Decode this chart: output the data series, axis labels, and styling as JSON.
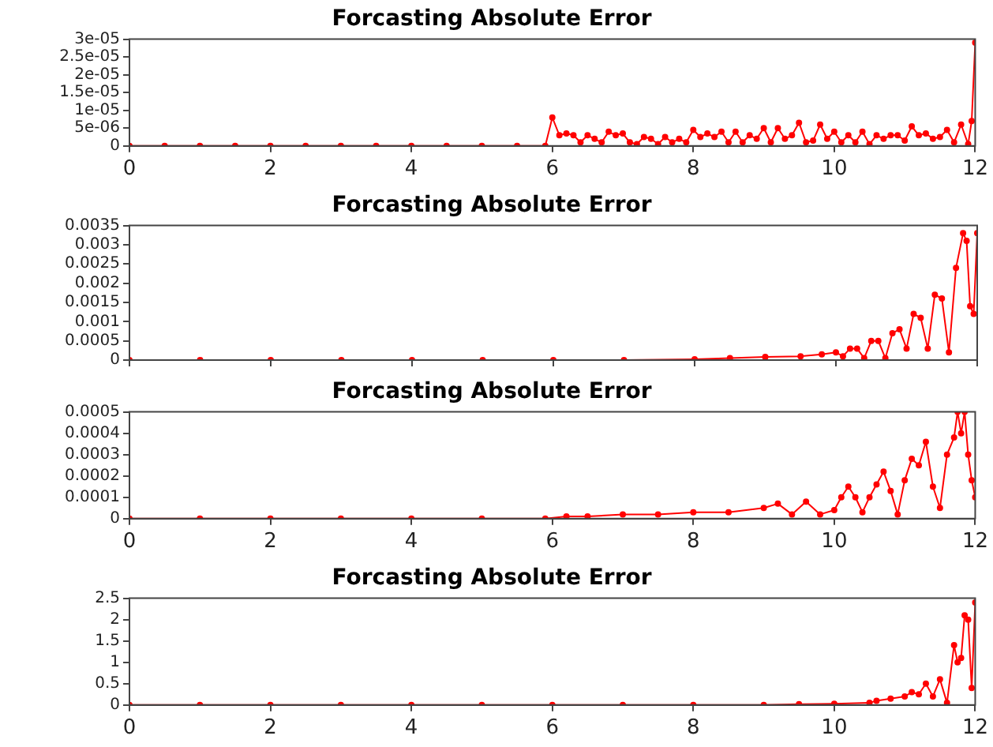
{
  "chart_data": [
    {
      "type": "line",
      "title": "Forcasting Absolute Error",
      "marker": "circle",
      "grid": false,
      "xlim": [
        0,
        12
      ],
      "xticks": [
        0,
        2,
        4,
        6,
        8,
        10,
        12
      ],
      "ylim": [
        0,
        3e-05
      ],
      "yticks": [
        0,
        {
          "value": 5e-06,
          "label": "5e-06"
        },
        {
          "value": 1e-05,
          "label": "1e-05"
        },
        {
          "value": 1.5e-05,
          "label": "1.5e-05"
        },
        {
          "value": 2e-05,
          "label": "2e-05"
        },
        {
          "value": 2.5e-05,
          "label": "2.5e-05"
        },
        {
          "value": 3e-05,
          "label": "3e-05"
        }
      ],
      "series": [
        {
          "color": "#ff0000",
          "x": [
            0,
            0.5,
            1,
            1.5,
            2,
            2.5,
            3,
            3.5,
            4,
            4.5,
            5,
            5.5,
            5.9,
            6.0,
            6.1,
            6.2,
            6.3,
            6.4,
            6.5,
            6.6,
            6.7,
            6.8,
            6.9,
            7.0,
            7.1,
            7.2,
            7.3,
            7.4,
            7.5,
            7.6,
            7.7,
            7.8,
            7.9,
            8.0,
            8.1,
            8.2,
            8.3,
            8.4,
            8.5,
            8.6,
            8.7,
            8.8,
            8.9,
            9.0,
            9.1,
            9.2,
            9.3,
            9.4,
            9.5,
            9.6,
            9.7,
            9.8,
            9.9,
            10.0,
            10.1,
            10.2,
            10.3,
            10.4,
            10.5,
            10.6,
            10.7,
            10.8,
            10.9,
            11.0,
            11.1,
            11.2,
            11.3,
            11.4,
            11.5,
            11.6,
            11.7,
            11.8,
            11.9,
            11.95,
            12.0
          ],
          "values": [
            0,
            0,
            0,
            0,
            0,
            0,
            0,
            0,
            0,
            0,
            0,
            0,
            0,
            8e-06,
            3e-06,
            3.5e-06,
            3e-06,
            1e-06,
            3e-06,
            2e-06,
            1e-06,
            4e-06,
            3e-06,
            3.5e-06,
            1e-06,
            5e-07,
            2.5e-06,
            2e-06,
            5e-07,
            2.5e-06,
            1e-06,
            2e-06,
            1e-06,
            4.5e-06,
            2.5e-06,
            3.5e-06,
            2.5e-06,
            4e-06,
            1e-06,
            4e-06,
            1e-06,
            3e-06,
            2e-06,
            5e-06,
            1e-06,
            5e-06,
            2e-06,
            3e-06,
            6.5e-06,
            1e-06,
            1.5e-06,
            6e-06,
            2e-06,
            4e-06,
            1e-06,
            3e-06,
            1e-06,
            4e-06,
            5e-07,
            3e-06,
            2e-06,
            3e-06,
            3e-06,
            1.5e-06,
            5.5e-06,
            3e-06,
            3.5e-06,
            2e-06,
            2.5e-06,
            4.5e-06,
            1e-06,
            6e-06,
            5e-07,
            7e-06,
            2.9e-05
          ]
        }
      ]
    },
    {
      "type": "line",
      "title": "Forcasting Absolute Error",
      "marker": "circle",
      "grid": false,
      "tick_labels": "y",
      "xlim": [
        0,
        12
      ],
      "xticks": [
        0,
        2,
        4,
        6,
        8,
        10,
        12
      ],
      "ylim": [
        0,
        0.0035
      ],
      "yticks": [
        0,
        0.0005,
        0.001,
        0.0015,
        0.002,
        0.0025,
        0.003,
        0.0035
      ],
      "series": [
        {
          "color": "#ff0000",
          "x": [
            0,
            1,
            2,
            3,
            4,
            5,
            6,
            7,
            8,
            8.5,
            9,
            9.5,
            9.8,
            10.0,
            10.1,
            10.2,
            10.3,
            10.4,
            10.5,
            10.6,
            10.7,
            10.8,
            10.9,
            11.0,
            11.1,
            11.2,
            11.3,
            11.4,
            11.5,
            11.6,
            11.7,
            11.8,
            11.85,
            11.9,
            11.95,
            12.0
          ],
          "values": [
            0,
            0,
            0,
            0,
            0,
            0,
            0,
            0,
            2e-05,
            5e-05,
            8e-05,
            0.0001,
            0.00015,
            0.0002,
            0.0001,
            0.0003,
            0.0003,
            5e-05,
            0.0005,
            0.0005,
            5e-05,
            0.0007,
            0.0008,
            0.0003,
            0.0012,
            0.0011,
            0.0003,
            0.0017,
            0.0016,
            0.0002,
            0.0024,
            0.0033,
            0.0031,
            0.0014,
            0.0012,
            0.0033
          ]
        }
      ]
    },
    {
      "type": "line",
      "title": "Forcasting Absolute Error",
      "marker": "circle",
      "grid": false,
      "xlim": [
        0,
        12
      ],
      "xticks": [
        0,
        2,
        4,
        6,
        8,
        10,
        12
      ],
      "ylim": [
        0,
        0.0005
      ],
      "yticks": [
        0,
        0.0001,
        0.0002,
        0.0003,
        0.0004,
        0.0005
      ],
      "series": [
        {
          "color": "#ff0000",
          "x": [
            0,
            1,
            2,
            3,
            4,
            5,
            5.9,
            6.2,
            6.5,
            7.0,
            7.5,
            8.0,
            8.5,
            9.0,
            9.2,
            9.4,
            9.6,
            9.8,
            10.0,
            10.1,
            10.2,
            10.3,
            10.4,
            10.5,
            10.6,
            10.7,
            10.8,
            10.9,
            11.0,
            11.1,
            11.2,
            11.3,
            11.4,
            11.5,
            11.6,
            11.7,
            11.75,
            11.8,
            11.85,
            11.9,
            11.95,
            12.0
          ],
          "values": [
            0,
            0,
            0,
            0,
            0,
            0,
            0,
            1e-05,
            1e-05,
            2e-05,
            2e-05,
            3e-05,
            3e-05,
            5e-05,
            7e-05,
            2e-05,
            8e-05,
            2e-05,
            4e-05,
            0.0001,
            0.00015,
            0.0001,
            3e-05,
            0.0001,
            0.00016,
            0.00022,
            0.00013,
            2e-05,
            0.00018,
            0.00028,
            0.00025,
            0.00036,
            0.00015,
            5e-05,
            0.0003,
            0.00038,
            0.0005,
            0.0004,
            0.0005,
            0.0003,
            0.00018,
            0.0001
          ]
        }
      ]
    },
    {
      "type": "line",
      "title": "Forcasting Absolute Error",
      "marker": "circle",
      "grid": false,
      "xlim": [
        0,
        12
      ],
      "xticks": [
        0,
        2,
        4,
        6,
        8,
        10,
        12
      ],
      "ylim": [
        0,
        2.5
      ],
      "yticks": [
        0,
        0.5,
        1,
        1.5,
        2,
        2.5
      ],
      "series": [
        {
          "color": "#ff0000",
          "x": [
            0,
            1,
            2,
            3,
            4,
            5,
            6,
            7,
            8,
            9,
            9.5,
            10,
            10.5,
            10.6,
            10.8,
            11.0,
            11.1,
            11.2,
            11.3,
            11.4,
            11.5,
            11.6,
            11.7,
            11.75,
            11.8,
            11.85,
            11.9,
            11.95,
            12.0
          ],
          "values": [
            0,
            0,
            0,
            0,
            0,
            0,
            0,
            0,
            0,
            0,
            0.02,
            0.03,
            0.05,
            0.1,
            0.15,
            0.2,
            0.3,
            0.25,
            0.5,
            0.2,
            0.6,
            0.05,
            1.4,
            1.0,
            1.1,
            2.1,
            2.0,
            0.4,
            2.4
          ]
        }
      ]
    }
  ]
}
